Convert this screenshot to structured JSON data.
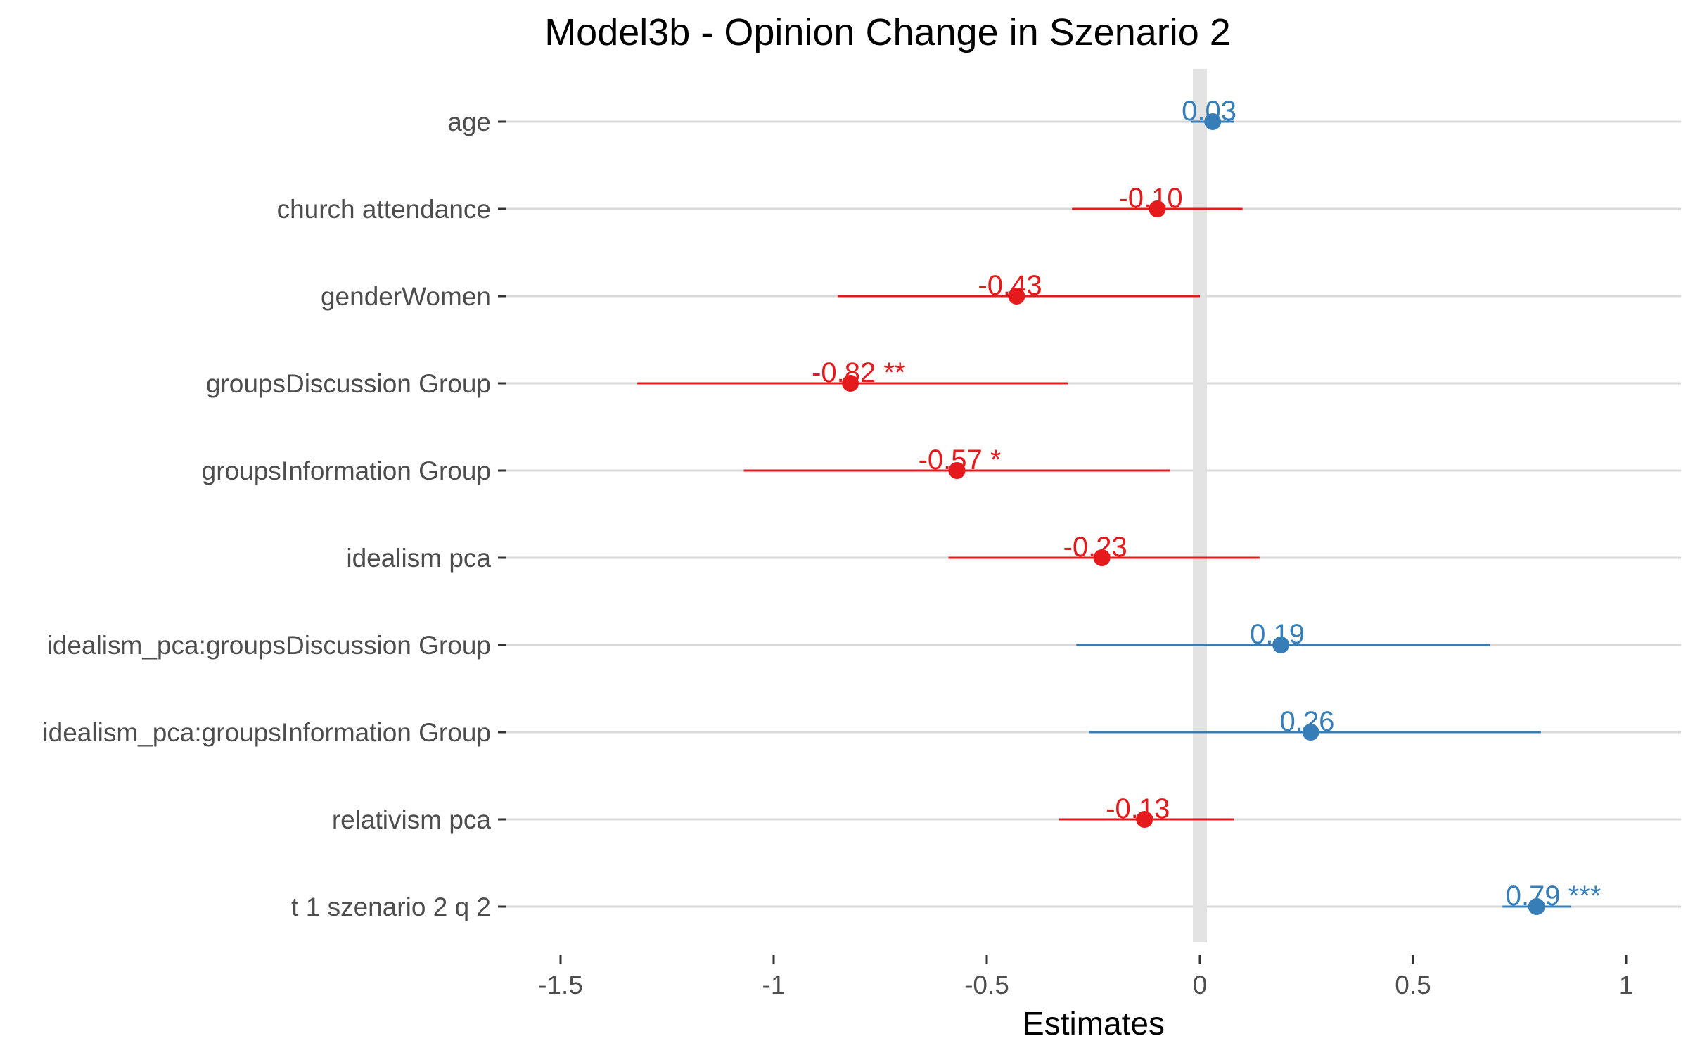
{
  "chart_data": {
    "type": "scatter",
    "title": "Model3b - Opinion Change in Szenario 2",
    "xlabel": "Estimates",
    "ylabel": "",
    "xlim": [
      -1.65,
      1.12
    ],
    "xticks": [
      -1.5,
      -1,
      -0.5,
      0,
      0.5,
      1
    ],
    "xtick_labels": [
      "-1.5",
      "-1",
      "-0.5",
      "0",
      "0.5",
      "1"
    ],
    "grid": true,
    "legend": "none",
    "colors": {
      "positive": "#377eb8",
      "negative": "#e41a1c",
      "zero_line": "#e3e3e3",
      "grid": "#d9d9d9"
    },
    "terms": [
      {
        "label": "age",
        "estimate": 0.03,
        "ci_low": -0.02,
        "ci_high": 0.08,
        "estimate_label": "0.03"
      },
      {
        "label": "church attendance",
        "estimate": -0.1,
        "ci_low": -0.3,
        "ci_high": 0.1,
        "estimate_label": "-0.10"
      },
      {
        "label": "genderWomen",
        "estimate": -0.43,
        "ci_low": -0.85,
        "ci_high": 0.0,
        "estimate_label": "-0.43"
      },
      {
        "label": "groupsDiscussion Group",
        "estimate": -0.82,
        "ci_low": -1.32,
        "ci_high": -0.31,
        "estimate_label": "-0.82 **"
      },
      {
        "label": "groupsInformation Group",
        "estimate": -0.57,
        "ci_low": -1.07,
        "ci_high": -0.07,
        "estimate_label": "-0.57 *"
      },
      {
        "label": "idealism pca",
        "estimate": -0.23,
        "ci_low": -0.59,
        "ci_high": 0.14,
        "estimate_label": "-0.23"
      },
      {
        "label": "idealism_pca:groupsDiscussion Group",
        "estimate": 0.19,
        "ci_low": -0.29,
        "ci_high": 0.68,
        "estimate_label": "0.19"
      },
      {
        "label": "idealism_pca:groupsInformation Group",
        "estimate": 0.26,
        "ci_low": -0.26,
        "ci_high": 0.8,
        "estimate_label": "0.26"
      },
      {
        "label": "relativism pca",
        "estimate": -0.13,
        "ci_low": -0.33,
        "ci_high": 0.08,
        "estimate_label": "-0.13"
      },
      {
        "label": "t 1 szenario 2 q 2",
        "estimate": 0.79,
        "ci_low": 0.71,
        "ci_high": 0.87,
        "estimate_label": "0.79 ***"
      }
    ]
  }
}
